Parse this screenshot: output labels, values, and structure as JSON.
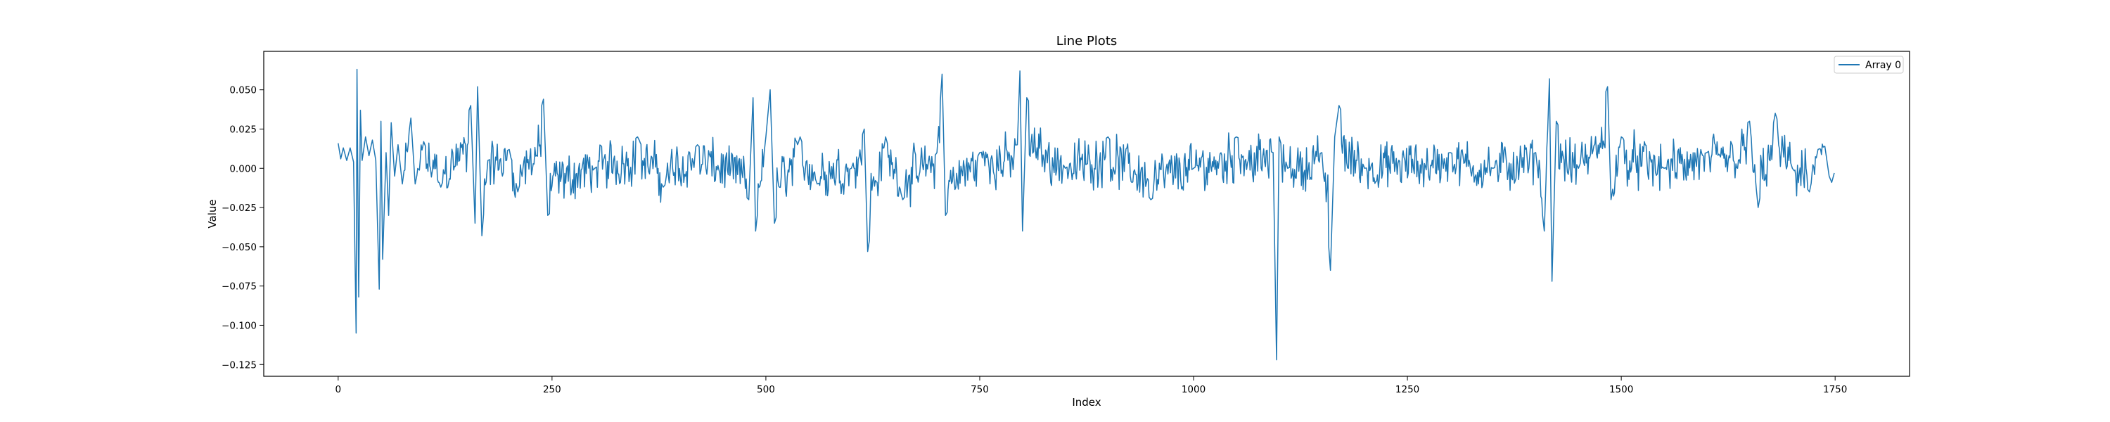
{
  "chart_data": {
    "type": "line",
    "title": "Line Plots",
    "xlabel": "Index",
    "ylabel": "Value",
    "xlim": [
      -87,
      1837
    ],
    "ylim": [
      -0.1325,
      0.0745
    ],
    "xticks": [
      0,
      250,
      500,
      750,
      1000,
      1250,
      1500,
      1750
    ],
    "xtick_labels": [
      "0",
      "250",
      "500",
      "750",
      "1000",
      "1250",
      "1500",
      "1750"
    ],
    "yticks": [
      -0.125,
      -0.1,
      -0.075,
      -0.05,
      -0.025,
      0.0,
      0.025,
      0.05
    ],
    "ytick_labels": [
      "−0.125",
      "−0.100",
      "−0.075",
      "−0.050",
      "−0.025",
      "0.000",
      "0.025",
      "0.050"
    ],
    "grid": false,
    "legend_position": "top-right",
    "series": [
      {
        "name": "Array 0",
        "color": "#1f77b4",
        "x_start": 0,
        "x_end": 1749,
        "n_points": 1750,
        "noise_amplitude": 0.012,
        "keypoints": [
          [
            0,
            0.016
          ],
          [
            3,
            0.006
          ],
          [
            6,
            0.013
          ],
          [
            10,
            0.005
          ],
          [
            14,
            0.013
          ],
          [
            18,
            0.004
          ],
          [
            21,
            -0.105
          ],
          [
            22,
            0.063
          ],
          [
            24,
            -0.082
          ],
          [
            26,
            0.037
          ],
          [
            28,
            0.005
          ],
          [
            32,
            0.02
          ],
          [
            36,
            0.008
          ],
          [
            40,
            0.018
          ],
          [
            44,
            0.005
          ],
          [
            48,
            -0.077
          ],
          [
            50,
            0.03
          ],
          [
            52,
            -0.058
          ],
          [
            56,
            0.01
          ],
          [
            59,
            -0.03
          ],
          [
            62,
            0.029
          ],
          [
            66,
            -0.005
          ],
          [
            70,
            0.015
          ],
          [
            75,
            -0.01
          ],
          [
            85,
            0.032
          ],
          [
            90,
            -0.01
          ],
          [
            100,
            0.017
          ],
          [
            120,
            -0.012
          ],
          [
            155,
            0.04
          ],
          [
            160,
            -0.035
          ],
          [
            163,
            0.052
          ],
          [
            168,
            -0.043
          ],
          [
            175,
            0.005
          ],
          [
            200,
            0.012
          ],
          [
            210,
            -0.015
          ],
          [
            240,
            0.044
          ],
          [
            245,
            -0.03
          ],
          [
            300,
            0.0
          ],
          [
            350,
            0.02
          ],
          [
            380,
            -0.012
          ],
          [
            420,
            0.015
          ],
          [
            480,
            -0.02
          ],
          [
            485,
            0.045
          ],
          [
            488,
            -0.04
          ],
          [
            500,
            0.02
          ],
          [
            505,
            0.05
          ],
          [
            510,
            -0.035
          ],
          [
            540,
            0.02
          ],
          [
            560,
            -0.01
          ],
          [
            600,
            0.0
          ],
          [
            615,
            0.025
          ],
          [
            619,
            -0.053
          ],
          [
            640,
            0.02
          ],
          [
            660,
            -0.02
          ],
          [
            700,
            0.01
          ],
          [
            706,
            0.06
          ],
          [
            710,
            -0.03
          ],
          [
            750,
            0.01
          ],
          [
            794,
            0.015
          ],
          [
            797,
            0.062
          ],
          [
            800,
            -0.04
          ],
          [
            805,
            0.045
          ],
          [
            850,
            0.0
          ],
          [
            900,
            0.02
          ],
          [
            950,
            -0.02
          ],
          [
            1000,
            0.0
          ],
          [
            1050,
            0.02
          ],
          [
            1093,
            0.01
          ],
          [
            1097,
            -0.122
          ],
          [
            1100,
            0.02
          ],
          [
            1110,
            0.0
          ],
          [
            1150,
            0.01
          ],
          [
            1160,
            -0.065
          ],
          [
            1165,
            0.02
          ],
          [
            1170,
            0.04
          ],
          [
            1200,
            0.0
          ],
          [
            1300,
            0.01
          ],
          [
            1350,
            0.0
          ],
          [
            1400,
            0.01
          ],
          [
            1410,
            -0.04
          ],
          [
            1416,
            0.057
          ],
          [
            1419,
            -0.072
          ],
          [
            1424,
            0.03
          ],
          [
            1450,
            0.0
          ],
          [
            1484,
            0.052
          ],
          [
            1488,
            -0.02
          ],
          [
            1500,
            0.02
          ],
          [
            1550,
            0.0
          ],
          [
            1600,
            0.01
          ],
          [
            1650,
            0.03
          ],
          [
            1660,
            -0.025
          ],
          [
            1680,
            0.035
          ],
          [
            1700,
            0.0
          ],
          [
            1720,
            -0.015
          ],
          [
            1730,
            0.012
          ],
          [
            1738,
            0.014
          ],
          [
            1743,
            -0.005
          ],
          [
            1746,
            -0.009
          ],
          [
            1749,
            -0.003
          ]
        ]
      }
    ]
  }
}
